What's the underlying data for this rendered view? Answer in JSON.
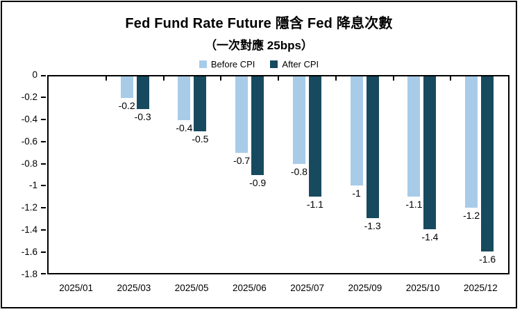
{
  "chart": {
    "title": "Fed Fund Rate Future 隱含 Fed 降息次數",
    "subtitle": "（一次對應 25bps）"
  },
  "chart_data": {
    "type": "bar",
    "title": "Fed Fund Rate Future 隱含 Fed 降息次數",
    "subtitle": "（一次對應 25bps）",
    "categories": [
      "2025/01",
      "2025/03",
      "2025/05",
      "2025/06",
      "2025/07",
      "2025/09",
      "2025/10",
      "2025/12"
    ],
    "series": [
      {
        "name": "Before CPI",
        "color": "#A8CBE8",
        "values": [
          0,
          -0.2,
          -0.4,
          -0.7,
          -0.8,
          -1,
          -1.1,
          -1.2
        ],
        "labels": [
          "",
          "-0.2",
          "-0.4",
          "-0.7",
          "-0.8",
          "-1",
          "-1.1",
          "-1.2"
        ]
      },
      {
        "name": "After CPI",
        "color": "#174A5F",
        "values": [
          0,
          -0.3,
          -0.5,
          -0.9,
          -1.1,
          -1.3,
          -1.4,
          -1.6
        ],
        "labels": [
          "",
          "-0.3",
          "-0.5",
          "-0.9",
          "-1.1",
          "-1.3",
          "-1.4",
          "-1.6"
        ]
      }
    ],
    "ylim": [
      0,
      -1.8
    ],
    "y_ticks": [
      0,
      -0.2,
      -0.4,
      -0.6,
      -0.8,
      -1,
      -1.2,
      -1.4,
      -1.6,
      -1.8
    ],
    "y_tick_labels": [
      "0",
      "-0.2",
      "-0.4",
      "-0.6",
      "-0.8",
      "-1",
      "-1.2",
      "-1.4",
      "-1.6",
      "-1.8"
    ],
    "legend_position": "top",
    "grid": false,
    "axis_color": "#000000",
    "text_color": "#000000",
    "xlabel": "",
    "ylabel": ""
  }
}
